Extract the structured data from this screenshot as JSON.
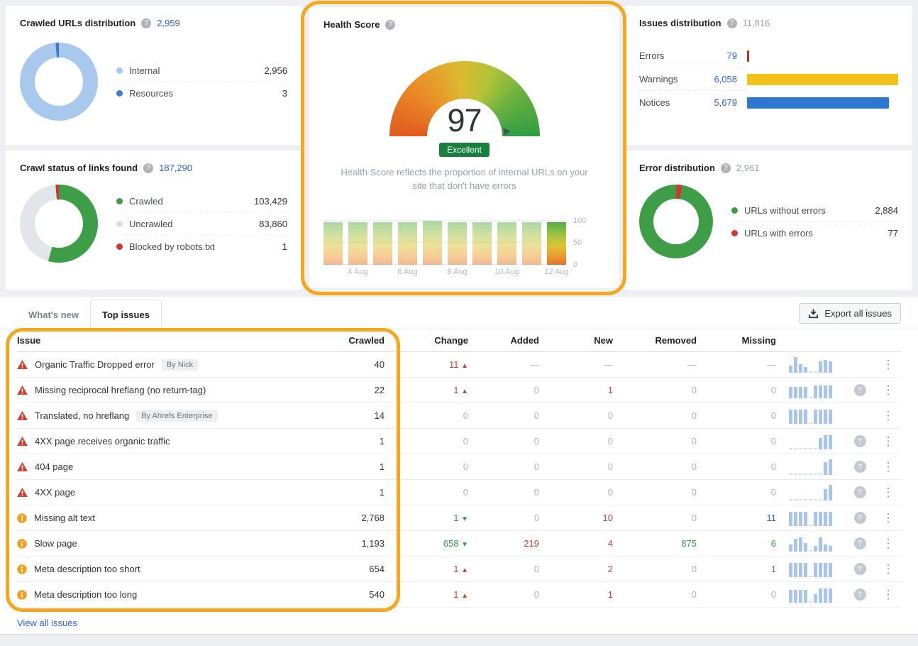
{
  "colors": {
    "accent_blue": "#2b63d9",
    "annotation_orange": "#f5a81f",
    "error_red": "#cb4437",
    "warning_orange": "#f59f1e",
    "success_green": "#2f9e44"
  },
  "cards": {
    "crawled_urls": {
      "title": "Crawled URLs distribution",
      "total": "2,959",
      "donut": [
        {
          "label": "Internal",
          "value": 2956,
          "color": "#a9c8ee"
        },
        {
          "label": "Resources",
          "value": 3,
          "color": "#3b7ecb"
        }
      ],
      "legend": [
        {
          "label": "Internal",
          "value": "2,956",
          "color": "#a9c8ee"
        },
        {
          "label": "Resources",
          "value": "3",
          "color": "#3b7ecb"
        }
      ]
    },
    "crawl_status": {
      "title": "Crawl status of links found",
      "total": "187,290",
      "donut": [
        {
          "label": "Crawled",
          "value": 103429,
          "color": "#3d9e47"
        },
        {
          "label": "Uncrawled",
          "value": 83860,
          "color": "#e2e5e9"
        },
        {
          "label": "Blocked by robots.txt",
          "value": 1,
          "color": "#cb3a2f"
        }
      ],
      "legend": [
        {
          "label": "Crawled",
          "value": "103,429",
          "color": "#3d9e47"
        },
        {
          "label": "Uncrawled",
          "value": "83,860",
          "color": "#d9dde2"
        },
        {
          "label": "Blocked by robots.txt",
          "value": "1",
          "color": "#cb3a2f"
        }
      ]
    },
    "health_score": {
      "title": "Health Score",
      "score": "97",
      "badge": "Excellent",
      "description": "Health Score reflects the proportion of internal URLs on your site that don't have errors",
      "history": {
        "values": [
          97,
          97,
          96,
          97,
          100,
          97,
          96,
          97,
          97,
          97
        ],
        "labels": [
          "",
          "4 Aug",
          "",
          "6 Aug",
          "",
          "8 Aug",
          "",
          "10 Aug",
          "",
          "12 Aug"
        ],
        "y_ticks": [
          "100",
          "50",
          "0"
        ],
        "y_max": 100
      }
    },
    "issues_distribution": {
      "title": "Issues distribution",
      "total": "11,816",
      "rows": [
        {
          "label": "Errors",
          "value": "79",
          "num": 79,
          "color": "#cc2b1d"
        },
        {
          "label": "Warnings",
          "value": "6,058",
          "num": 6058,
          "color": "#f1c219"
        },
        {
          "label": "Notices",
          "value": "5,679",
          "num": 5679,
          "color": "#2f78d2"
        }
      ]
    },
    "error_distribution": {
      "title": "Error distribution",
      "total": "2,961",
      "donut": [
        {
          "label": "URLs with errors",
          "value": 77,
          "color": "#cb3a2f"
        },
        {
          "label": "URLs without errors",
          "value": 2884,
          "color": "#3d9e47"
        }
      ],
      "legend": [
        {
          "label": "URLs without errors",
          "value": "2,884",
          "color": "#3d9e47"
        },
        {
          "label": "URLs with errors",
          "value": "77",
          "color": "#cb3a2f"
        }
      ]
    }
  },
  "tabs": {
    "whats_new": "What's new",
    "top_issues": "Top issues"
  },
  "export_button": "Export all issues",
  "view_all_link": "View all issues",
  "table": {
    "headers": [
      "Issue",
      "Crawled",
      "Added",
      "Change",
      "New",
      "Removed",
      "Missing"
    ],
    "rows": [
      {
        "severity": "error",
        "issue": "Organic Traffic Dropped error",
        "badge": "By Nick",
        "crawled": "40",
        "change": {
          "text": "11",
          "dir": "up",
          "color": "red"
        },
        "added": {
          "text": "—",
          "color": "gray"
        },
        "new": {
          "text": "—",
          "color": "gray"
        },
        "removed": {
          "text": "—",
          "color": "gray"
        },
        "missing": {
          "text": "—",
          "color": "gray"
        },
        "spark": [
          3,
          9,
          4,
          2,
          0,
          0,
          6,
          7,
          6
        ],
        "help": false
      },
      {
        "severity": "error",
        "issue": "Missing reciprocal hreflang (no return-tag)",
        "badge": null,
        "crawled": "22",
        "change": {
          "text": "1",
          "dir": "up",
          "color": "red"
        },
        "added": {
          "text": "0",
          "color": "gray"
        },
        "new": {
          "text": "1",
          "color": "red"
        },
        "removed": {
          "text": "0",
          "color": "gray"
        },
        "missing": {
          "text": "0",
          "color": "gray"
        },
        "spark": [
          6,
          6,
          6,
          6,
          0,
          7,
          7,
          7,
          7
        ],
        "help": true
      },
      {
        "severity": "error",
        "issue": "Translated, no hreflang",
        "badge": "By Ahrefs Enterprise",
        "crawled": "14",
        "change": {
          "text": "0",
          "dir": null,
          "color": "gray"
        },
        "added": {
          "text": "0",
          "color": "gray"
        },
        "new": {
          "text": "0",
          "color": "gray"
        },
        "removed": {
          "text": "0",
          "color": "gray"
        },
        "missing": {
          "text": "0",
          "color": "gray"
        },
        "spark": [
          8,
          8,
          8,
          8,
          0,
          8,
          8,
          8,
          8
        ],
        "help": false
      },
      {
        "severity": "error",
        "issue": "4XX page receives organic traffic",
        "badge": null,
        "crawled": "1",
        "change": {
          "text": "0",
          "dir": null,
          "color": "gray"
        },
        "added": {
          "text": "0",
          "color": "gray"
        },
        "new": {
          "text": "0",
          "color": "gray"
        },
        "removed": {
          "text": "0",
          "color": "gray"
        },
        "missing": {
          "text": "0",
          "color": "gray"
        },
        "spark": [
          0,
          0,
          0,
          0,
          0,
          0,
          6,
          8,
          8
        ],
        "help": true
      },
      {
        "severity": "error",
        "issue": "404 page",
        "badge": null,
        "crawled": "1",
        "change": {
          "text": "0",
          "dir": null,
          "color": "gray"
        },
        "added": {
          "text": "0",
          "color": "gray"
        },
        "new": {
          "text": "0",
          "color": "gray"
        },
        "removed": {
          "text": "0",
          "color": "gray"
        },
        "missing": {
          "text": "0",
          "color": "gray"
        },
        "spark": [
          0,
          0,
          0,
          0,
          0,
          0,
          0,
          7,
          9
        ],
        "help": true
      },
      {
        "severity": "error",
        "issue": "4XX page",
        "badge": null,
        "crawled": "1",
        "change": {
          "text": "0",
          "dir": null,
          "color": "gray"
        },
        "added": {
          "text": "0",
          "color": "gray"
        },
        "new": {
          "text": "0",
          "color": "gray"
        },
        "removed": {
          "text": "0",
          "color": "gray"
        },
        "missing": {
          "text": "0",
          "color": "gray"
        },
        "spark": [
          0,
          0,
          0,
          0,
          0,
          0,
          0,
          6,
          9
        ],
        "help": true
      },
      {
        "severity": "warning",
        "issue": "Missing alt text",
        "badge": null,
        "crawled": "2,768",
        "change": {
          "text": "1",
          "dir": "down",
          "color": "green"
        },
        "added": {
          "text": "0",
          "color": "gray"
        },
        "new": {
          "text": "10",
          "color": "red"
        },
        "removed": {
          "text": "0",
          "color": "gray"
        },
        "missing": {
          "text": "11",
          "color": "blue"
        },
        "spark": [
          8,
          8,
          8,
          8,
          0,
          8,
          8,
          8,
          8
        ],
        "help": true
      },
      {
        "severity": "warning",
        "issue": "Slow page",
        "badge": null,
        "crawled": "1,193",
        "change": {
          "text": "658",
          "dir": "down",
          "color": "green"
        },
        "added": {
          "text": "219",
          "color": "red"
        },
        "new": {
          "text": "4",
          "color": "red"
        },
        "removed": {
          "text": "875",
          "color": "green"
        },
        "missing": {
          "text": "6",
          "color": "green"
        },
        "spark": [
          3,
          7,
          8,
          4,
          0,
          2,
          8,
          3,
          2
        ],
        "help": true
      },
      {
        "severity": "warning",
        "issue": "Meta description too short",
        "badge": null,
        "crawled": "654",
        "change": {
          "text": "1",
          "dir": "up",
          "color": "red"
        },
        "added": {
          "text": "0",
          "color": "gray"
        },
        "new": {
          "text": "2",
          "color": "red"
        },
        "removed": {
          "text": "0",
          "color": "gray"
        },
        "missing": {
          "text": "1",
          "color": "green"
        },
        "spark": [
          8,
          8,
          8,
          8,
          0,
          8,
          8,
          8,
          8
        ],
        "help": true
      },
      {
        "severity": "warning",
        "issue": "Meta description too long",
        "badge": null,
        "crawled": "540",
        "change": {
          "text": "1",
          "dir": "up",
          "color": "red"
        },
        "added": {
          "text": "0",
          "color": "gray"
        },
        "new": {
          "text": "1",
          "color": "red"
        },
        "removed": {
          "text": "0",
          "color": "gray"
        },
        "missing": {
          "text": "0",
          "color": "gray"
        },
        "spark": [
          7,
          7,
          7,
          7,
          0,
          4,
          8,
          8,
          8
        ],
        "help": true
      }
    ]
  }
}
